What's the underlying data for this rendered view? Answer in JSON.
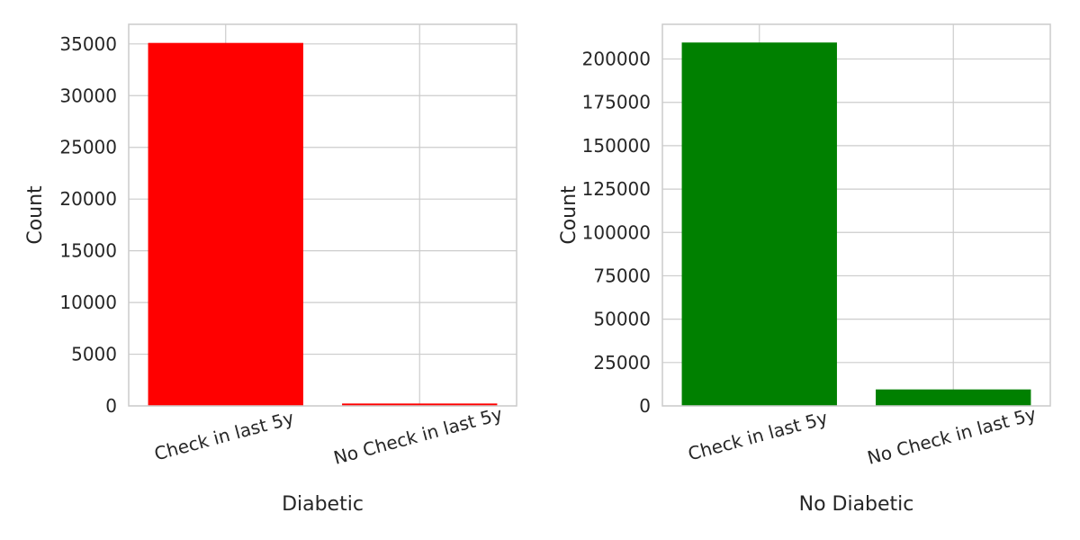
{
  "chart_data": [
    {
      "type": "bar",
      "categories": [
        "Check in last 5y",
        "No Check in last 5y"
      ],
      "values": [
        35100,
        230
      ],
      "color": "#ff0000",
      "xlabel": "Diabetic",
      "ylabel": "Count",
      "ylim": [
        0,
        36900
      ],
      "yticks": [
        0,
        5000,
        10000,
        15000,
        20000,
        25000,
        30000,
        35000
      ],
      "grid": true
    },
    {
      "type": "bar",
      "categories": [
        "Check in last 5y",
        "No Check in last 5y"
      ],
      "values": [
        209500,
        9500
      ],
      "color": "#008000",
      "xlabel": "No Diabetic",
      "ylabel": "Count",
      "ylim": [
        0,
        220000
      ],
      "yticks": [
        0,
        25000,
        50000,
        75000,
        100000,
        125000,
        150000,
        175000,
        200000
      ],
      "grid": true
    }
  ]
}
